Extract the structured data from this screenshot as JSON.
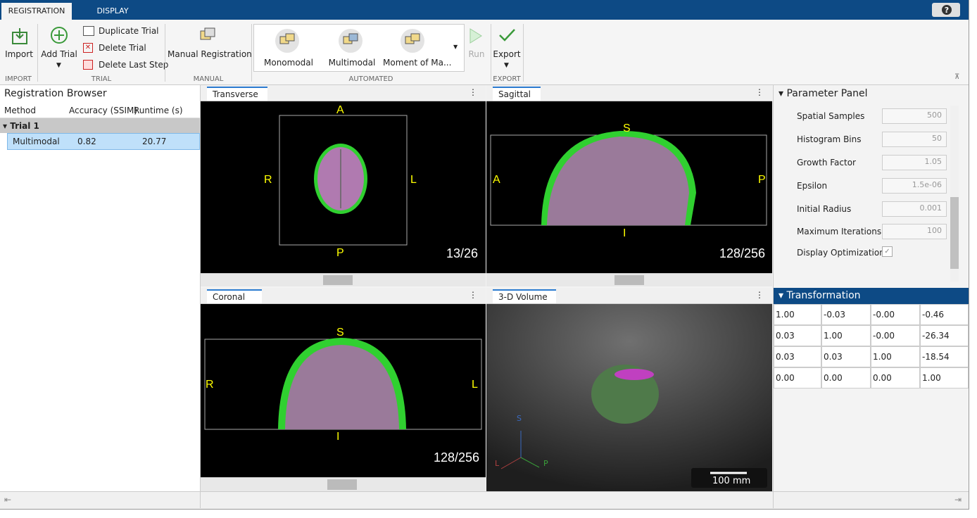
{
  "tabs": [
    "REGISTRATION",
    "DISPLAY"
  ],
  "toolstrip": {
    "import": {
      "button": "Import",
      "section": "IMPORT"
    },
    "trial": {
      "add": "Add Trial",
      "duplicate": "Duplicate Trial",
      "delete": "Delete Trial",
      "delete_last": "Delete Last Step",
      "section": "TRIAL"
    },
    "manual": {
      "button": "Manual Registration",
      "section": "MANUAL"
    },
    "automated": {
      "buttons": [
        "Monomodal",
        "Multimodal",
        "Moment of Ma..."
      ],
      "run": "Run",
      "section": "AUTOMATED"
    },
    "export": {
      "button": "Export",
      "section": "EXPORT"
    }
  },
  "browser": {
    "title": "Registration Browser",
    "columns": [
      "Method",
      "Accuracy (SSIM)",
      "Runtime (s)"
    ],
    "group": "Trial 1",
    "rows": [
      [
        "Multimodal",
        "0.82",
        "20.77"
      ]
    ]
  },
  "views": [
    {
      "title": "Transverse",
      "top": "A",
      "left": "R",
      "right": "L",
      "bottom": "P",
      "slice": "13/26"
    },
    {
      "title": "Sagittal",
      "top": "S",
      "left": "A",
      "right": "P",
      "bottom": "I",
      "slice": "128/256"
    },
    {
      "title": "Coronal",
      "top": "S",
      "left": "R",
      "right": "L",
      "bottom": "I",
      "slice": "128/256"
    },
    {
      "title": "3-D Volume",
      "axes": [
        "S",
        "L",
        "P"
      ],
      "scale": "100 mm"
    }
  ],
  "parameter_panel": {
    "title": "Parameter Panel",
    "params": [
      {
        "label": "Spatial Samples",
        "value": "500"
      },
      {
        "label": "Histogram Bins",
        "value": "50"
      },
      {
        "label": "Growth Factor",
        "value": "1.05"
      },
      {
        "label": "Epsilon",
        "value": "1.5e-06"
      },
      {
        "label": "Initial Radius",
        "value": "0.001"
      },
      {
        "label": "Maximum Iterations",
        "value": "100"
      }
    ],
    "display_optimization": "Display Optimization"
  },
  "transformation": {
    "title": "Transformation",
    "matrix": [
      [
        "1.00",
        "-0.03",
        "-0.00",
        "-0.46"
      ],
      [
        "0.03",
        "1.00",
        "-0.00",
        "-26.34"
      ],
      [
        "0.03",
        "0.03",
        "1.00",
        "-18.54"
      ],
      [
        "0.00",
        "0.00",
        "0.00",
        "1.00"
      ]
    ]
  }
}
